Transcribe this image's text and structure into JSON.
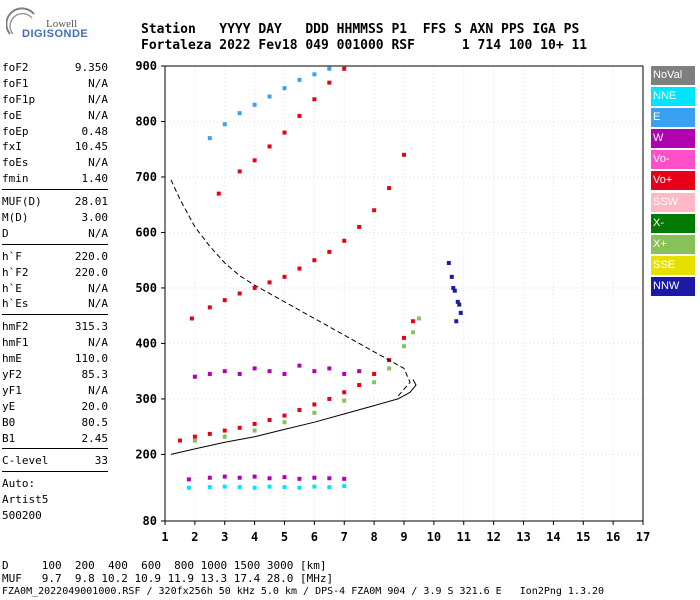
{
  "logo": {
    "line1": "Lowell",
    "line2": "DIGISONDE"
  },
  "header": {
    "line1": "Station   YYYY DAY   DDD HHMMSS P1  FFS S AXN PPS IGA PS",
    "line2": "Fortaleza 2022 Fev18 049 001000 RSF      1 714 100 10+ 11"
  },
  "params": {
    "group1": [
      {
        "label": "foF2",
        "value": "9.350"
      },
      {
        "label": "foF1",
        "value": "N/A"
      },
      {
        "label": "foF1p",
        "value": "N/A"
      },
      {
        "label": "foE",
        "value": "N/A"
      },
      {
        "label": "foEp",
        "value": "0.48"
      },
      {
        "label": "fxI",
        "value": "10.45"
      },
      {
        "label": "foEs",
        "value": "N/A"
      },
      {
        "label": "fmin",
        "value": "1.40"
      }
    ],
    "group2": [
      {
        "label": "MUF(D)",
        "value": "28.01"
      },
      {
        "label": "M(D)",
        "value": "3.00"
      },
      {
        "label": "D",
        "value": "N/A"
      }
    ],
    "group3": [
      {
        "label": "h`F",
        "value": "220.0"
      },
      {
        "label": "h`F2",
        "value": "220.0"
      },
      {
        "label": "h`E",
        "value": "N/A"
      },
      {
        "label": "h`Es",
        "value": "N/A"
      }
    ],
    "group4": [
      {
        "label": "hmF2",
        "value": "315.3"
      },
      {
        "label": "hmF1",
        "value": "N/A"
      },
      {
        "label": "hmE",
        "value": "110.0"
      },
      {
        "label": "yF2",
        "value": "85.3"
      },
      {
        "label": "yF1",
        "value": "N/A"
      },
      {
        "label": "yE",
        "value": "20.0"
      },
      {
        "label": "B0",
        "value": "80.5"
      },
      {
        "label": "B1",
        "value": "2.45"
      }
    ],
    "group5": [
      {
        "label": "C-level",
        "value": "33"
      }
    ],
    "auto": [
      "Auto:",
      "Artist5",
      "500200"
    ]
  },
  "legend": [
    {
      "label": "NoVal",
      "bg": "#7f7f7f",
      "fg": "#ffffff"
    },
    {
      "label": "NNE",
      "bg": "#00e5ff",
      "fg": "#ffffff"
    },
    {
      "label": "E",
      "bg": "#3aa0f0",
      "fg": "#ffffff"
    },
    {
      "label": "W",
      "bg": "#b000b0",
      "fg": "#ffffff"
    },
    {
      "label": "Vo-",
      "bg": "#ff4fc8",
      "fg": "#ffffff"
    },
    {
      "label": "Vo+",
      "bg": "#e8001a",
      "fg": "#ffffff"
    },
    {
      "label": "SSW",
      "bg": "#ffb8c4",
      "fg": "#ffffff"
    },
    {
      "label": "X-",
      "bg": "#007a00",
      "fg": "#ffffff"
    },
    {
      "label": "X+",
      "bg": "#88c05a",
      "fg": "#ffffff"
    },
    {
      "label": "SSE",
      "bg": "#e6df00",
      "fg": "#ffffff"
    },
    {
      "label": "NNW",
      "bg": "#1a1aa6",
      "fg": "#ffffff"
    }
  ],
  "footer": {
    "line1": "D     100  200  400  600  800 1000 1500 3000 [km]",
    "line2": "MUF   9.7  9.8 10.2 10.9 11.9 13.3 17.4 28.0 [MHz]",
    "line3": "FZA0M_2022049001000.RSF / 320fx256h 50 kHz 5.0 km / DPS-4 FZA0M 904 / 3.9 S 321.6 E   Ion2Png 1.3.20"
  },
  "chart_data": {
    "type": "scatter",
    "title": "",
    "xlabel": "",
    "ylabel": "",
    "xlim": [
      1,
      17
    ],
    "ylim": [
      80,
      900
    ],
    "x_ticks": [
      1,
      2,
      3,
      4,
      5,
      6,
      7,
      8,
      9,
      10,
      11,
      12,
      13,
      14,
      15,
      16,
      17
    ],
    "y_ticks": [
      80,
      200,
      300,
      400,
      500,
      600,
      700,
      800,
      900
    ],
    "grid": true,
    "series": [
      {
        "name": "O-trace 1st hop",
        "color": "#e8001a",
        "x": [
          1.5,
          2,
          2.5,
          3,
          3.5,
          4,
          4.5,
          5,
          5.5,
          6,
          6.5,
          7,
          7.5,
          8,
          8.5,
          9,
          9.3
        ],
        "y": [
          225,
          232,
          237,
          243,
          248,
          255,
          262,
          270,
          280,
          290,
          300,
          312,
          325,
          345,
          370,
          410,
          440
        ]
      },
      {
        "name": "X-trace 1st hop",
        "color": "#88c05a",
        "x": [
          2,
          3,
          4,
          5,
          6,
          7,
          8,
          8.5,
          9,
          9.3,
          9.5
        ],
        "y": [
          225,
          232,
          243,
          258,
          275,
          297,
          330,
          355,
          395,
          420,
          445
        ]
      },
      {
        "name": "2nd hop",
        "color": "#e8001a",
        "x": [
          1.9,
          2.5,
          3,
          3.5,
          4,
          4.5,
          5,
          5.5,
          6,
          6.5,
          7,
          7.5,
          8,
          8.5,
          9
        ],
        "y": [
          445,
          465,
          478,
          490,
          500,
          510,
          520,
          535,
          550,
          565,
          585,
          610,
          640,
          680,
          740
        ]
      },
      {
        "name": "3rd hop",
        "color": "#e8001a",
        "x": [
          2.8,
          3.5,
          4,
          4.5,
          5,
          5.5,
          6,
          6.5,
          7
        ],
        "y": [
          670,
          710,
          730,
          755,
          780,
          810,
          840,
          870,
          895
        ]
      },
      {
        "name": "Upper spread",
        "color": "#3aa0f0",
        "x": [
          2.5,
          3,
          3.5,
          4,
          4.5,
          5,
          5.5,
          6,
          6.5
        ],
        "y": [
          770,
          795,
          815,
          830,
          845,
          860,
          875,
          885,
          895
        ]
      },
      {
        "name": "W scatter",
        "color": "#b000b0",
        "x": [
          2,
          2.5,
          3,
          3.5,
          4,
          4.5,
          5,
          5.5,
          6,
          6.5,
          7,
          7.5
        ],
        "y": [
          340,
          345,
          350,
          345,
          355,
          350,
          345,
          360,
          350,
          355,
          345,
          350
        ]
      },
      {
        "name": "Bottom band",
        "color": "#b000b0",
        "x": [
          1.8,
          2.5,
          3,
          3.5,
          4,
          4.5,
          5,
          5.5,
          6,
          6.5,
          7
        ],
        "y": [
          155,
          158,
          160,
          158,
          160,
          157,
          159,
          156,
          158,
          157,
          156
        ]
      },
      {
        "name": "Bottom band NNE",
        "color": "#00e5ff",
        "x": [
          1.8,
          2.5,
          3,
          3.5,
          4,
          4.5,
          5,
          5.5,
          6,
          6.5,
          7
        ],
        "y": [
          140,
          141,
          142,
          141,
          140,
          142,
          141,
          140,
          142,
          141,
          143
        ]
      },
      {
        "name": "NNW cluster",
        "color": "#1a1aa6",
        "x": [
          10.5,
          10.6,
          10.7,
          10.8,
          10.9,
          10.75,
          10.65,
          10.85
        ],
        "y": [
          545,
          520,
          495,
          475,
          455,
          440,
          500,
          470
        ]
      }
    ],
    "curves": [
      {
        "name": "profile",
        "style": "solid",
        "x": [
          1.2,
          2,
          3,
          4,
          5,
          6,
          7,
          8,
          8.8,
          9.2,
          9.4,
          9.3
        ],
        "y": [
          200,
          210,
          222,
          232,
          245,
          258,
          273,
          288,
          300,
          312,
          325,
          335
        ]
      },
      {
        "name": "MUF",
        "style": "dashed",
        "x": [
          1.2,
          1.5,
          2,
          2.5,
          3,
          3.5,
          4,
          5,
          6,
          7,
          8,
          9,
          9.2,
          8.8
        ],
        "y": [
          695,
          660,
          610,
          575,
          545,
          522,
          505,
          475,
          445,
          415,
          385,
          355,
          330,
          305
        ]
      }
    ]
  }
}
